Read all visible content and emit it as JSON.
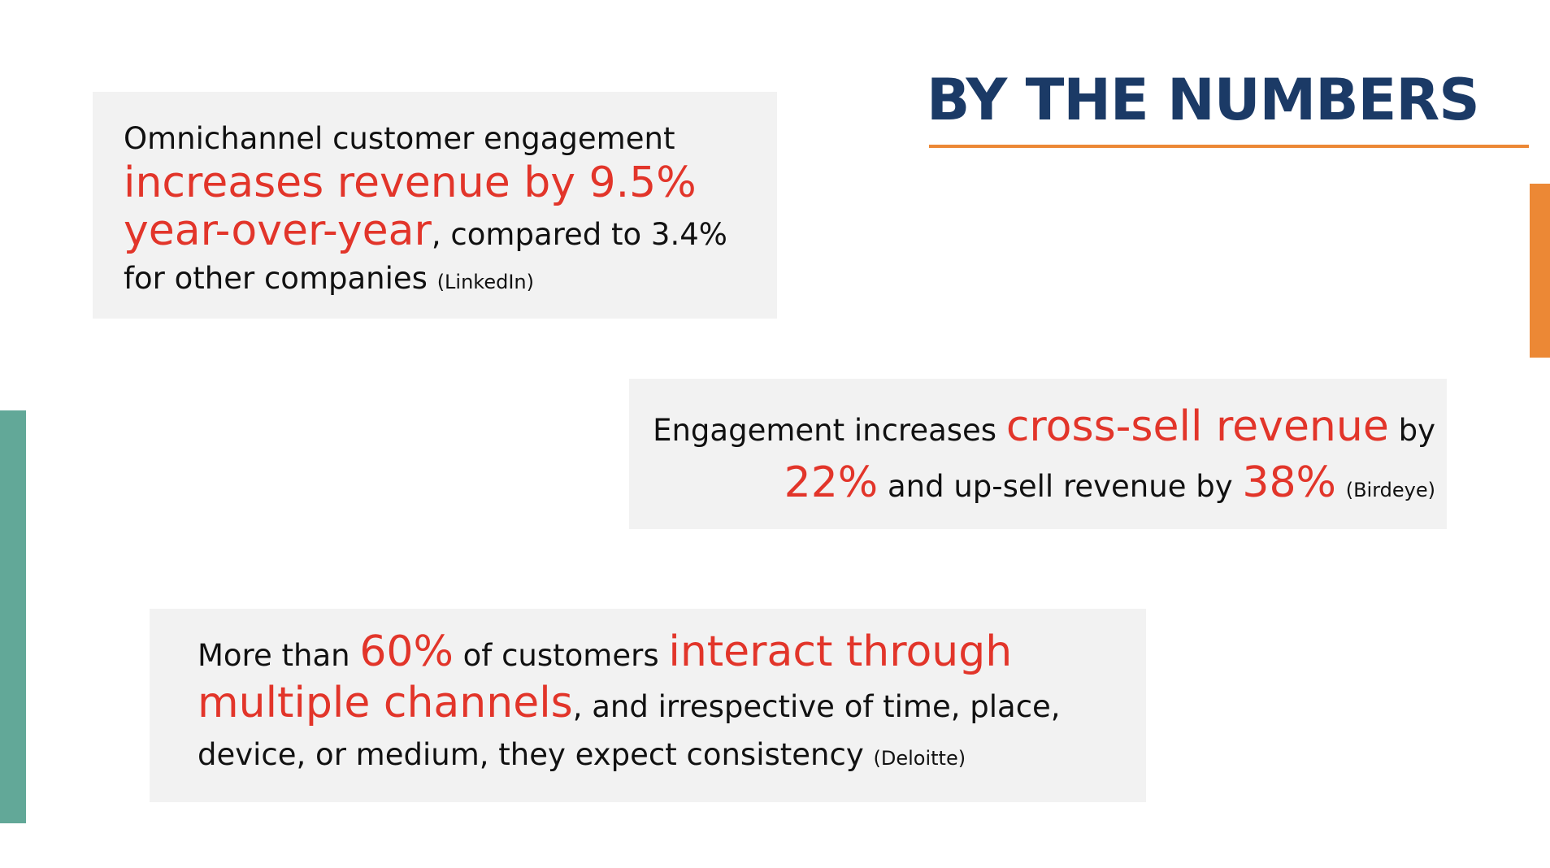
{
  "header": {
    "title": "BY THE NUMBERS"
  },
  "colors": {
    "title": "#1b3a66",
    "accent_orange": "#ec8835",
    "accent_teal": "#62a898",
    "highlight_red": "#e2352a",
    "box_background": "#f2f2f2"
  },
  "stats": [
    {
      "segments": [
        "Omnichannel customer engagement ",
        "increases revenue by 9.5% year-over-year",
        ", compared to 3.4% for other companies ",
        "(LinkedIn)"
      ]
    },
    {
      "segments": [
        "Engagement increases ",
        "cross-sell revenue",
        " by ",
        "22%",
        " and up-sell revenue by ",
        "38%",
        " ",
        "(Birdeye)"
      ]
    },
    {
      "segments": [
        "More than ",
        "60%",
        " of customers ",
        "interact through multiple channels",
        ", and irrespective of time, place, device, or medium, they expect consistency ",
        "(Deloitte)"
      ]
    }
  ]
}
